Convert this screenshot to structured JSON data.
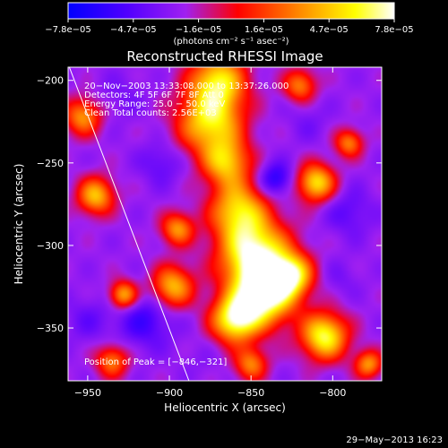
{
  "chart_data": {
    "type": "heatmap",
    "title": "Reconstructed RHESSI Image",
    "xlabel": "Heliocentric X (arcsec)",
    "ylabel": "Heliocentric Y (arcsec)",
    "xlim": [
      -962,
      -770
    ],
    "ylim": [
      -382,
      -192
    ],
    "x_ticks": [
      -950,
      -900,
      -850,
      -800
    ],
    "x_tick_labels": [
      "−950",
      "−900",
      "−850",
      "−800"
    ],
    "y_ticks": [
      -200,
      -250,
      -300,
      -350
    ],
    "y_tick_labels": [
      "−200",
      "−250",
      "−300",
      "−350"
    ],
    "colorbar": {
      "min": -7.8e-05,
      "max": 7.8e-05,
      "tick_labels": [
        "−7.8e−05",
        "−4.7e−05",
        "−1.6e−05",
        "1.6e−05",
        "4.7e−05",
        "7.8e−05"
      ],
      "units": "(photons cm⁻² s⁻¹ asec⁻²)",
      "colors": [
        "#000000",
        "#0000ff",
        "#a020f0",
        "#ff0000",
        "#ffa500",
        "#ffff00",
        "#ffffff"
      ]
    },
    "annotations": {
      "time_range": "20−Nov−2003 13:33:08.000 to 13:37:26.000",
      "detectors": "Detectors: 4F 5F 6F 7F 8F  Att 0",
      "energy_range": "Energy Range: 25.0 − 50.0 keV",
      "method_counts": "Clean    Total counts: 2.56E+03",
      "peak": "Position of Peak = [−846,−321]"
    },
    "peak_position": [
      -846,
      -321
    ],
    "limb_line": [
      [
        -962,
        -190
      ],
      [
        -888,
        -382
      ]
    ],
    "sources": [
      {
        "x": -870,
        "y": -200,
        "sigma": 12,
        "value": 5e-05
      },
      {
        "x": -875,
        "y": -225,
        "sigma": 14,
        "value": 5.5e-05
      },
      {
        "x": -865,
        "y": -250,
        "sigma": 10,
        "value": 4e-05
      },
      {
        "x": -858,
        "y": -278,
        "sigma": 12,
        "value": 4.5e-05
      },
      {
        "x": -848,
        "y": -305,
        "sigma": 15,
        "value": 7.2e-05
      },
      {
        "x": -842,
        "y": -330,
        "sigma": 13,
        "value": 7.8e-05
      },
      {
        "x": -860,
        "y": -345,
        "sigma": 10,
        "value": 6.5e-05
      },
      {
        "x": -825,
        "y": -318,
        "sigma": 9,
        "value": 5e-05
      },
      {
        "x": -898,
        "y": -325,
        "sigma": 9,
        "value": 4.5e-05
      },
      {
        "x": -895,
        "y": -290,
        "sigma": 7,
        "value": 3.5e-05
      },
      {
        "x": -945,
        "y": -270,
        "sigma": 8,
        "value": 4.5e-05
      },
      {
        "x": -953,
        "y": -222,
        "sigma": 8,
        "value": 3.5e-05
      },
      {
        "x": -928,
        "y": -330,
        "sigma": 6,
        "value": 4.5e-05
      },
      {
        "x": -810,
        "y": -262,
        "sigma": 8,
        "value": 5.5e-05
      },
      {
        "x": -790,
        "y": -238,
        "sigma": 6,
        "value": 3e-05
      },
      {
        "x": -805,
        "y": -355,
        "sigma": 10,
        "value": 6.5e-05
      },
      {
        "x": -778,
        "y": -372,
        "sigma": 6,
        "value": 3.5e-05
      },
      {
        "x": -820,
        "y": -203,
        "sigma": 7,
        "value": 3e-05
      },
      {
        "x": -850,
        "y": -372,
        "sigma": 7,
        "value": 3e-05
      },
      {
        "x": -935,
        "y": -370,
        "sigma": 7,
        "value": 3e-05
      },
      {
        "x": -835,
        "y": -260,
        "sigma": 7,
        "value": -6.5e-05
      },
      {
        "x": -905,
        "y": -250,
        "sigma": 9,
        "value": -4.5e-05
      },
      {
        "x": -915,
        "y": -345,
        "sigma": 12,
        "value": -5.5e-05
      },
      {
        "x": -790,
        "y": -280,
        "sigma": 10,
        "value": -4.5e-05
      },
      {
        "x": -795,
        "y": -320,
        "sigma": 8,
        "value": -3.5e-05
      },
      {
        "x": -815,
        "y": -225,
        "sigma": 9,
        "value": -3.5e-05
      },
      {
        "x": -930,
        "y": -210,
        "sigma": 10,
        "value": -3.5e-05
      },
      {
        "x": -950,
        "y": -345,
        "sigma": 10,
        "value": -4e-05
      },
      {
        "x": -880,
        "y": -370,
        "sigma": 8,
        "value": -3e-05
      }
    ],
    "background_level": -2.5e-05
  },
  "footer": {
    "timestamp": "29−May−2013 16:23"
  }
}
